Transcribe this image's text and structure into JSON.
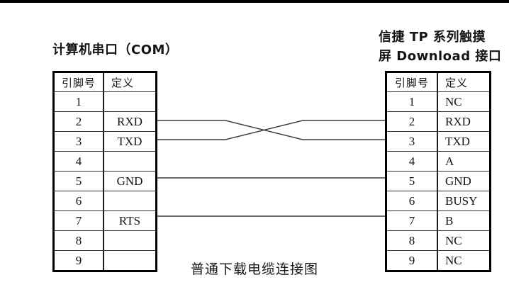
{
  "page": {
    "background": "#ffffff",
    "top_rule_color": "#000000"
  },
  "left_connector": {
    "title": "计算机串口（COM）",
    "headers": [
      "引脚号",
      "定义"
    ],
    "rows": [
      {
        "pin": "1",
        "def": ""
      },
      {
        "pin": "2",
        "def": "RXD"
      },
      {
        "pin": "3",
        "def": "TXD"
      },
      {
        "pin": "4",
        "def": ""
      },
      {
        "pin": "5",
        "def": "GND"
      },
      {
        "pin": "6",
        "def": ""
      },
      {
        "pin": "7",
        "def": "RTS"
      },
      {
        "pin": "8",
        "def": ""
      },
      {
        "pin": "9",
        "def": ""
      }
    ]
  },
  "right_connector": {
    "title_line1": "信捷 TP 系列触摸",
    "title_line2": "屏 Download 接口",
    "headers": [
      "引脚号",
      "定义"
    ],
    "rows": [
      {
        "pin": "1",
        "def": "NC"
      },
      {
        "pin": "2",
        "def": "RXD"
      },
      {
        "pin": "3",
        "def": "TXD"
      },
      {
        "pin": "4",
        "def": "A"
      },
      {
        "pin": "5",
        "def": "GND"
      },
      {
        "pin": "6",
        "def": "BUSY"
      },
      {
        "pin": "7",
        "def": "B"
      },
      {
        "pin": "8",
        "def": "NC"
      },
      {
        "pin": "9",
        "def": "NC"
      }
    ]
  },
  "wires": {
    "color": "#3f3f3f",
    "connections": [
      {
        "from_pin": "2",
        "to_pin": "3",
        "left_signal": "RXD",
        "right_signal": "TXD",
        "type": "crossed"
      },
      {
        "from_pin": "3",
        "to_pin": "2",
        "left_signal": "TXD",
        "right_signal": "RXD",
        "type": "crossed"
      },
      {
        "from_pin": "5",
        "to_pin": "5",
        "left_signal": "GND",
        "right_signal": "GND",
        "type": "straight"
      },
      {
        "from_pin": "7",
        "to_pin": "7",
        "left_signal": "RTS",
        "right_signal": "B",
        "type": "straight"
      }
    ]
  },
  "caption": "普通下载电缆连接图"
}
